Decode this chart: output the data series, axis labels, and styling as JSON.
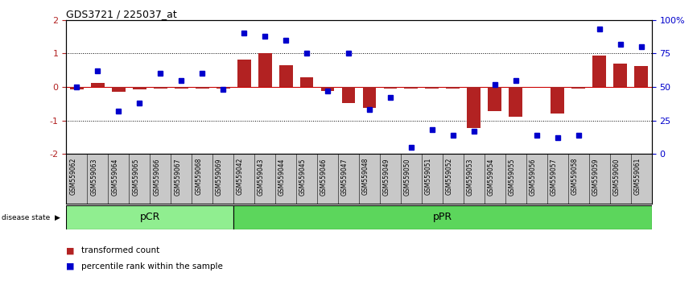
{
  "title": "GDS3721 / 225037_at",
  "samples": [
    "GSM559062",
    "GSM559063",
    "GSM559064",
    "GSM559065",
    "GSM559066",
    "GSM559067",
    "GSM559068",
    "GSM559069",
    "GSM559042",
    "GSM559043",
    "GSM559044",
    "GSM559045",
    "GSM559046",
    "GSM559047",
    "GSM559048",
    "GSM559049",
    "GSM559050",
    "GSM559051",
    "GSM559052",
    "GSM559053",
    "GSM559054",
    "GSM559055",
    "GSM559056",
    "GSM559057",
    "GSM559058",
    "GSM559059",
    "GSM559060",
    "GSM559061"
  ],
  "transformed_count": [
    -0.07,
    0.11,
    -0.15,
    -0.07,
    -0.04,
    -0.04,
    -0.04,
    -0.04,
    0.82,
    1.02,
    0.65,
    0.28,
    -0.12,
    -0.48,
    -0.62,
    -0.04,
    -0.04,
    -0.04,
    -0.04,
    -1.22,
    -0.72,
    -0.88,
    0.0,
    -0.8,
    -0.04,
    0.93,
    0.7,
    0.62
  ],
  "percentile_rank": [
    50,
    62,
    32,
    38,
    60,
    55,
    60,
    48,
    90,
    88,
    85,
    75,
    47,
    75,
    33,
    42,
    5,
    18,
    14,
    17,
    52,
    55,
    14,
    12,
    14,
    93,
    82,
    80
  ],
  "pCR_count": 8,
  "pPR_count": 20,
  "ylim": [
    -2,
    2
  ],
  "right_ylim": [
    0,
    100
  ],
  "bar_color": "#b22222",
  "dot_color": "#0000cc",
  "pcr_color": "#90ee90",
  "ppr_color": "#5cd65c",
  "label_area_color": "#c8c8c8",
  "zero_line_color": "#cc0000",
  "fig_width": 8.66,
  "fig_height": 3.54,
  "dpi": 100
}
